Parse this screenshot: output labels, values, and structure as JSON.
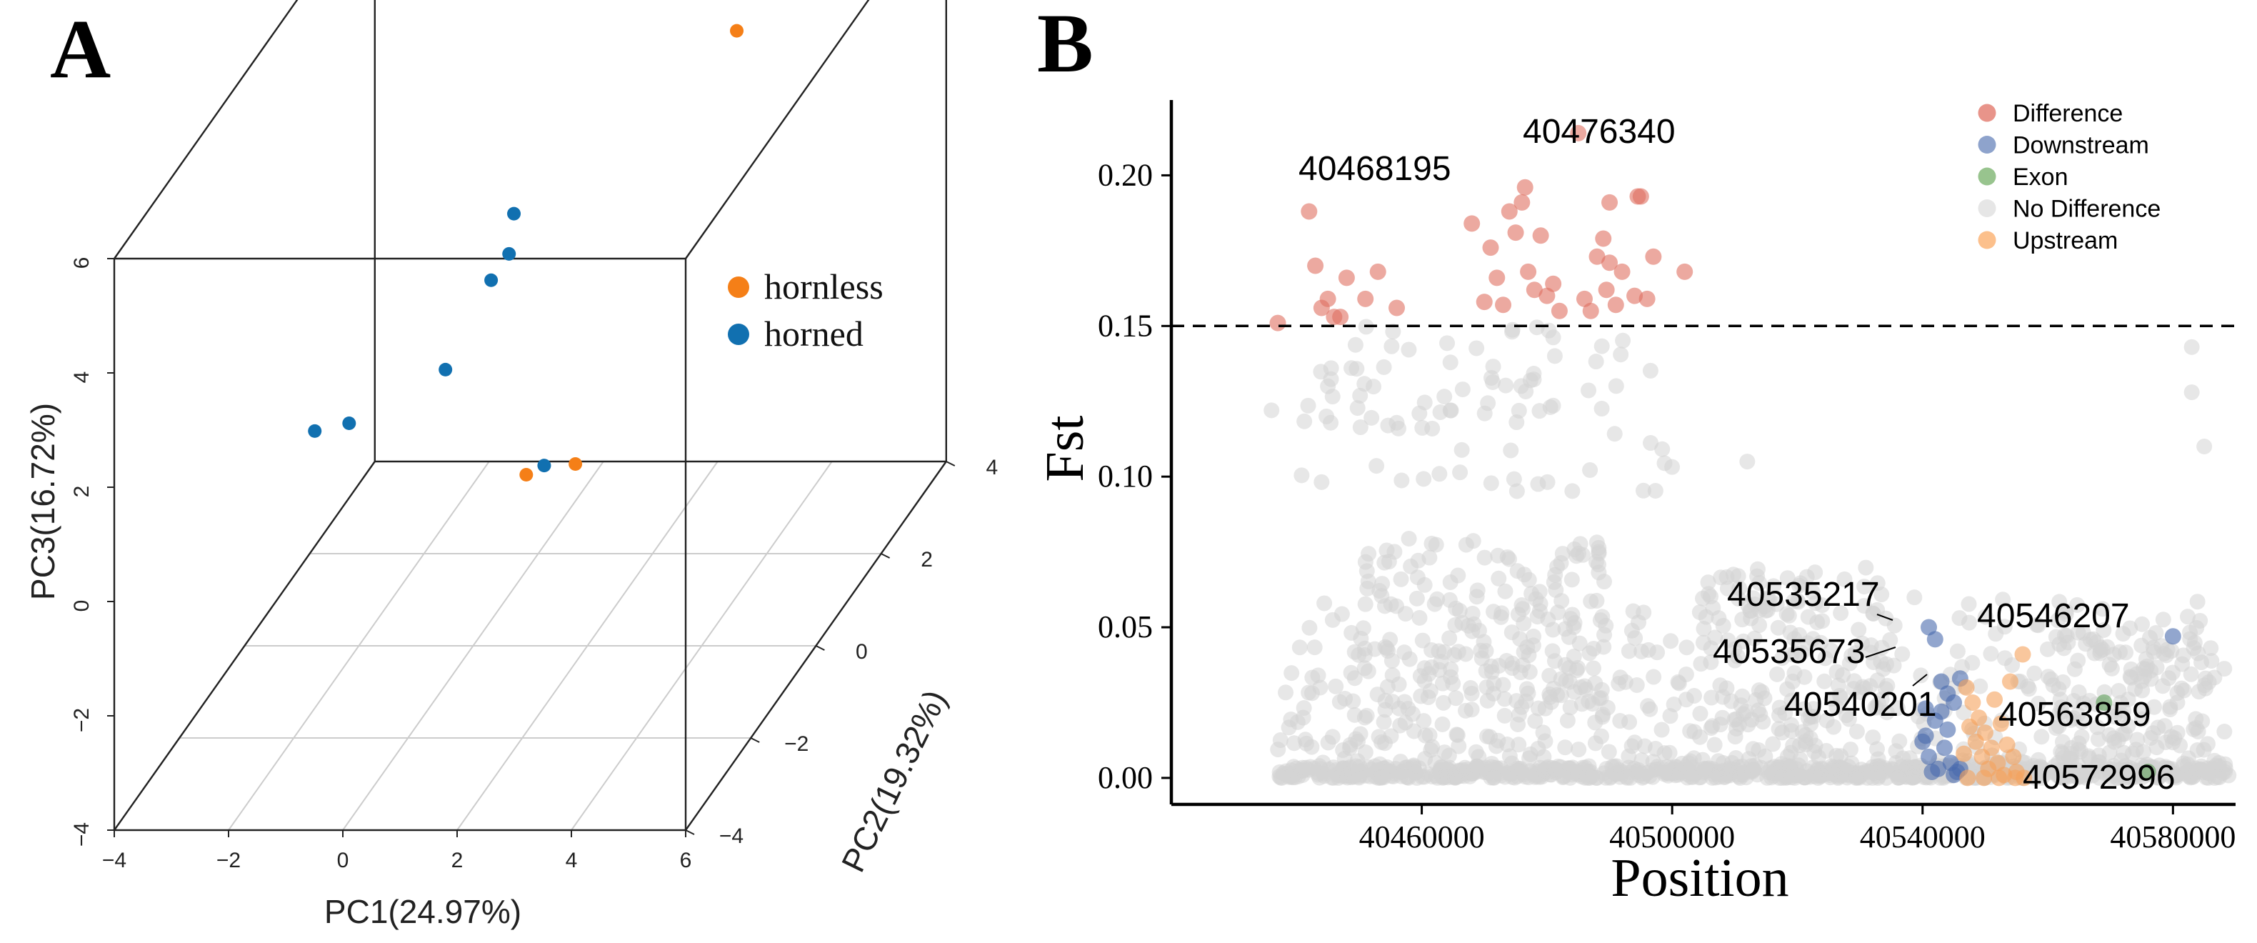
{
  "chart_data": [
    {
      "panel_label": "A",
      "type": "scatter",
      "subtype": "3d-pca",
      "xlabel": "PC1(24.97%)",
      "ylabel": "PC2(19.32%)",
      "zlabel": "PC3(16.72%)",
      "xlim": [
        -4,
        6
      ],
      "ylim": [
        -4,
        4
      ],
      "zlim": [
        -4,
        6
      ],
      "x_ticks": [
        "−4",
        "−2",
        "0",
        "2",
        "4",
        "6"
      ],
      "y_ticks": [
        "−4",
        "−2",
        "0",
        "2",
        "4"
      ],
      "z_ticks": [
        "−4",
        "−2",
        "0",
        "2",
        "4",
        "6"
      ],
      "legend": [
        {
          "label": "hornless",
          "color": "#f57f17"
        },
        {
          "label": "horned",
          "color": "#1170b0"
        }
      ],
      "series": [
        {
          "name": "hornless",
          "color": "#f57f17",
          "points": [
            {
              "x": 4.5,
              "y": 0.2,
              "z": 6.6
            },
            {
              "x": 3.5,
              "y": -3.0,
              "z": 1.6
            },
            {
              "x": 1.5,
              "y": -1.0,
              "z": -0.2
            }
          ]
        },
        {
          "name": "horned",
          "color": "#1170b0",
          "points": [
            {
              "x": 1.5,
              "y": 3.0,
              "z": 7.0
            },
            {
              "x": -2.6,
              "y": -0.3,
              "z": 0.0
            },
            {
              "x": -1.6,
              "y": -1.0,
              "z": 0.7
            },
            {
              "x": 0.6,
              "y": 0.2,
              "z": 3.4
            },
            {
              "x": 0.8,
              "y": -0.3,
              "z": 3.1
            },
            {
              "x": 0.6,
              "y": -0.5,
              "z": 2.8
            },
            {
              "x": 0.2,
              "y": -1.2,
              "z": 1.8
            },
            {
              "x": 1.7,
              "y": -0.8,
              "z": -0.2
            }
          ]
        }
      ]
    },
    {
      "panel_label": "B",
      "type": "scatter",
      "xlabel": "Position",
      "ylabel": "Fst",
      "xlim": [
        40420000,
        40590000
      ],
      "ylim": [
        -0.005,
        0.225
      ],
      "x_ticks": [
        "40460000",
        "40500000",
        "40540000",
        "40580000"
      ],
      "y_ticks": [
        "0.00",
        "0.05",
        "0.10",
        "0.15",
        "0.20"
      ],
      "threshold": 0.15,
      "legend": [
        {
          "label": "Difference",
          "color": "#e8948a"
        },
        {
          "label": "Downstream",
          "color": "#8ea3cc"
        },
        {
          "label": "Exon",
          "color": "#98c48e"
        },
        {
          "label": "No Difference",
          "color": "#e6e6e6"
        },
        {
          "label": "Upstream",
          "color": "#fcc08c"
        }
      ],
      "series": [
        {
          "name": "Difference",
          "color": "#e07060",
          "points": [
            [
              40437000,
              0.151
            ],
            [
              40442000,
              0.188
            ],
            [
              40443000,
              0.17
            ],
            [
              40444000,
              0.156
            ],
            [
              40445000,
              0.159
            ],
            [
              40446000,
              0.153
            ],
            [
              40447000,
              0.153
            ],
            [
              40448000,
              0.166
            ],
            [
              40451000,
              0.159
            ],
            [
              40453000,
              0.168
            ],
            [
              40456000,
              0.156
            ],
            [
              40468000,
              0.184
            ],
            [
              40471000,
              0.176
            ],
            [
              40472000,
              0.166
            ],
            [
              40473000,
              0.157
            ],
            [
              40474000,
              0.188
            ],
            [
              40475000,
              0.181
            ],
            [
              40476000,
              0.191
            ],
            [
              40476500,
              0.196
            ],
            [
              40477000,
              0.168
            ],
            [
              40478000,
              0.162
            ],
            [
              40479000,
              0.18
            ],
            [
              40480000,
              0.16
            ],
            [
              40481000,
              0.164
            ],
            [
              40482000,
              0.155
            ],
            [
              40486000,
              0.159
            ],
            [
              40487000,
              0.155
            ],
            [
              40488000,
              0.173
            ],
            [
              40489000,
              0.179
            ],
            [
              40489500,
              0.162
            ],
            [
              40490000,
              0.171
            ],
            [
              40491000,
              0.157
            ],
            [
              40492000,
              0.168
            ],
            [
              40494000,
              0.16
            ],
            [
              40494500,
              0.193
            ],
            [
              40495000,
              0.193
            ],
            [
              40496000,
              0.159
            ],
            [
              40497000,
              0.173
            ],
            [
              40485000,
              0.214
            ],
            [
              40490000,
              0.191
            ],
            [
              40502000,
              0.168
            ],
            [
              40470000,
              0.158
            ]
          ]
        },
        {
          "name": "Downstream",
          "color": "#4a6aae",
          "points": [
            [
              40541000,
              0.05
            ],
            [
              40542000,
              0.046
            ],
            [
              40543000,
              0.032
            ],
            [
              40544000,
              0.028
            ],
            [
              40545000,
              0.025
            ],
            [
              40546000,
              0.033
            ],
            [
              40540000,
              0.012
            ],
            [
              40540500,
              0.014
            ],
            [
              40541500,
              0.002
            ],
            [
              40542500,
              0.003
            ],
            [
              40543500,
              0.01
            ],
            [
              40544500,
              0.005
            ],
            [
              40545500,
              0.002
            ],
            [
              40541000,
              0.007
            ],
            [
              40542000,
              0.019
            ],
            [
              40543000,
              0.022
            ],
            [
              40544000,
              0.016
            ],
            [
              40545000,
              0.001
            ],
            [
              40546000,
              0.003
            ],
            [
              40540500,
              0.023
            ],
            [
              40580000,
              0.047
            ]
          ]
        },
        {
          "name": "Exon",
          "color": "#5fa05a",
          "points": [
            [
              40569000,
              0.025
            ],
            [
              40576000,
              0.002
            ]
          ]
        },
        {
          "name": "Upstream",
          "color": "#f5a25c",
          "points": [
            [
              40547000,
              0.03
            ],
            [
              40548000,
              0.025
            ],
            [
              40549000,
              0.02
            ],
            [
              40550000,
              0.015
            ],
            [
              40551000,
              0.01
            ],
            [
              40552000,
              0.005
            ],
            [
              40553000,
              0.001
            ],
            [
              40554000,
              0.032
            ],
            [
              40548500,
              0.012
            ],
            [
              40549500,
              0.007
            ],
            [
              40550500,
              0.003
            ],
            [
              40551500,
              0.026
            ],
            [
              40552500,
              0.018
            ],
            [
              40553500,
              0.011
            ],
            [
              40547500,
              0.017
            ],
            [
              40554500,
              0.007
            ],
            [
              40555000,
              0.002
            ],
            [
              40556000,
              0.041
            ],
            [
              40547200,
              0.0
            ],
            [
              40549800,
              0.0
            ],
            [
              40552200,
              0.0
            ],
            [
              40554800,
              0.0
            ],
            [
              40556200,
              0.0
            ],
            [
              40546600,
              0.008
            ]
          ]
        }
      ],
      "annotations": [
        {
          "text": "40476340",
          "x": 40485000,
          "y": 0.214
        },
        {
          "text": "40468195",
          "x": 40476500,
          "y": 0.196
        },
        {
          "text": "40535217",
          "x": 40541000,
          "y": 0.05
        },
        {
          "text": "40535673",
          "x": 40542000,
          "y": 0.046
        },
        {
          "text": "40546207",
          "x": 40580000,
          "y": 0.047
        },
        {
          "text": "40540201",
          "x": 40545000,
          "y": 0.032
        },
        {
          "text": "40563859",
          "x": 40569000,
          "y": 0.025
        },
        {
          "text": "40572996",
          "x": 40576000,
          "y": 0.002
        }
      ]
    }
  ]
}
